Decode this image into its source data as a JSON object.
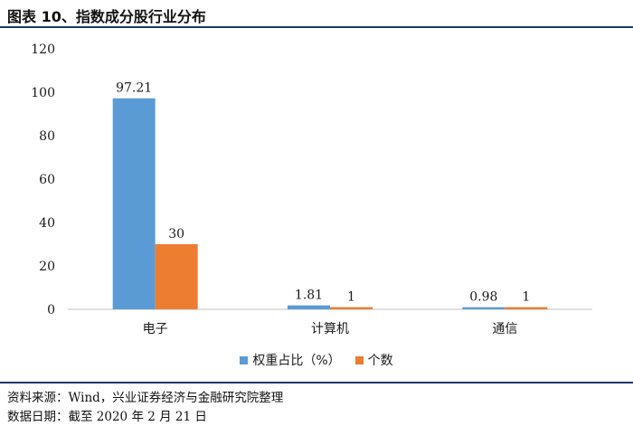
{
  "figure": {
    "title": "图表 10、指数成分股行业分布",
    "source": "资料来源：Wind，兴业证券经济与金融研究院整理",
    "date": "数据日期：截至 2020 年 2 月 21 日"
  },
  "chart_data": {
    "type": "bar",
    "categories": [
      "电子",
      "计算机",
      "通信"
    ],
    "series": [
      {
        "name": "权重占比（%）",
        "values": [
          97.21,
          1.81,
          0.98
        ],
        "color": "#5b9bd5"
      },
      {
        "name": "个数",
        "values": [
          30,
          1,
          1
        ],
        "color": "#ed7d31"
      }
    ],
    "data_labels": [
      [
        "97.21",
        "1.81",
        "0.98"
      ],
      [
        "30",
        "1",
        "1"
      ]
    ],
    "ylim": [
      0,
      120
    ],
    "yticks": [
      0,
      20,
      40,
      60,
      80,
      100,
      120
    ],
    "grid": false,
    "legend_position": "bottom"
  }
}
